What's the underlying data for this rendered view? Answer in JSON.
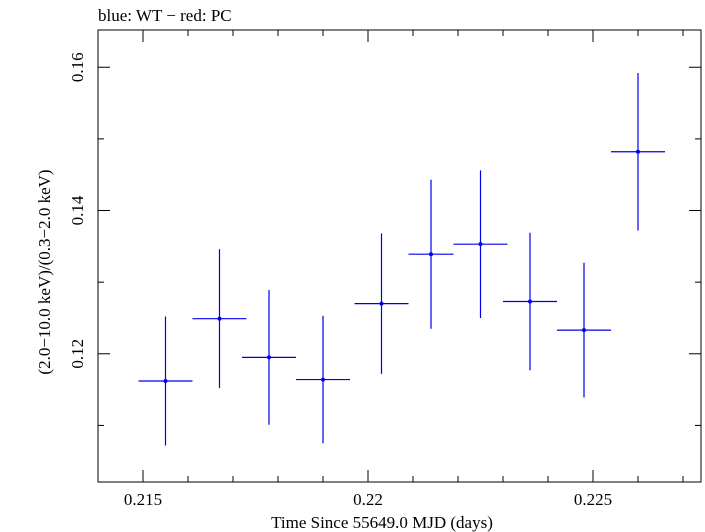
{
  "chart_data": {
    "type": "scatter",
    "title": "blue: WT − red: PC",
    "xlabel": "Time Since 55649.0 MJD (days)",
    "ylabel": "(2.0−10.0 keV)/(0.3−2.0 keV)",
    "xlim": [
      0.214,
      0.2274
    ],
    "ylim": [
      0.1021,
      0.1652
    ],
    "x_ticks": [
      0.215,
      0.22,
      0.225
    ],
    "x_tick_labels": [
      "0.215",
      "0.22",
      "0.225"
    ],
    "y_ticks": [
      0.12,
      0.14,
      0.16
    ],
    "y_tick_labels": [
      "0.12",
      "0.14",
      "0.16"
    ],
    "grid": false,
    "series": [
      {
        "color": "#0000ee",
        "points": [
          {
            "x": 0.2155,
            "xerr": 0.0006,
            "y": 0.1162,
            "yerr": 0.009
          },
          {
            "x": 0.2167,
            "xerr": 0.0006,
            "y": 0.1249,
            "yerr": 0.0097
          },
          {
            "x": 0.2178,
            "xerr": 0.0006,
            "y": 0.1195,
            "yerr": 0.0094
          },
          {
            "x": 0.219,
            "xerr": 0.0006,
            "y": 0.1164,
            "yerr": 0.0089
          },
          {
            "x": 0.2203,
            "xerr": 0.0006,
            "y": 0.127,
            "yerr": 0.0098
          },
          {
            "x": 0.2214,
            "xerr": 0.0005,
            "y": 0.1339,
            "yerr": 0.0104
          },
          {
            "x": 0.2225,
            "xerr": 0.0006,
            "y": 0.1353,
            "yerr": 0.0103
          },
          {
            "x": 0.2236,
            "xerr": 0.0006,
            "y": 0.1273,
            "yerr": 0.0096
          },
          {
            "x": 0.2248,
            "xerr": 0.0006,
            "y": 0.1233,
            "yerr": 0.0094
          },
          {
            "x": 0.226,
            "xerr": 0.0006,
            "y": 0.1482,
            "yerr": 0.011
          }
        ]
      }
    ]
  }
}
